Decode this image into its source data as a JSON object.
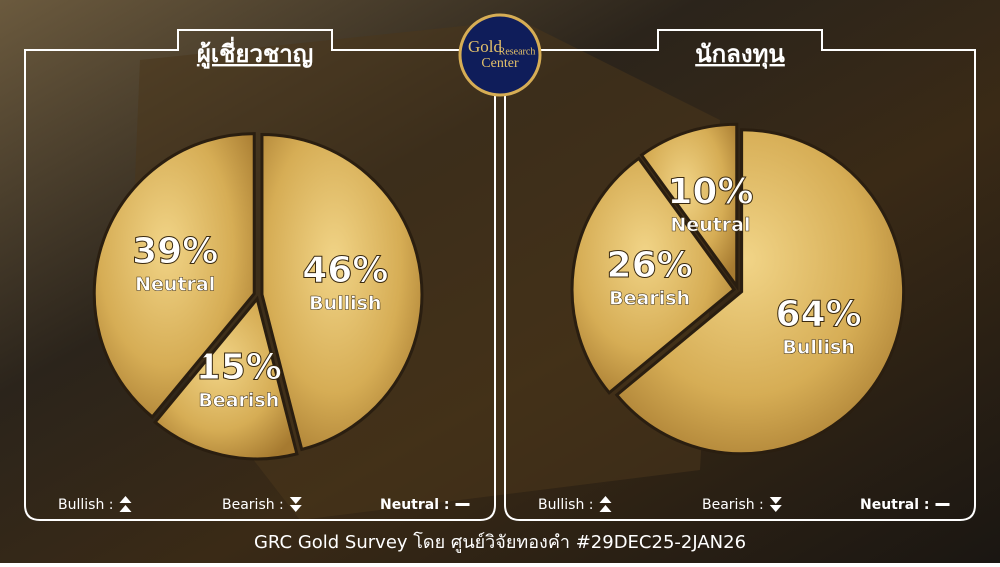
{
  "logo": [
    "Gold",
    "Research",
    "Center"
  ],
  "footer": "GRC Gold Survey โดย ศูนย์วิจัยทองคำ #29DEC25-2JAN26",
  "chart_data": [
    {
      "type": "pie",
      "title": "ผู้เชี่ยวชาญ",
      "categories": [
        "Bullish",
        "Bearish",
        "Neutral"
      ],
      "values": [
        46,
        15,
        39
      ],
      "value_labels": [
        "46%",
        "15%",
        "39%"
      ],
      "color": "#d6ad55",
      "legend": [
        "Bullish :",
        "Bearish :",
        "Neutral :"
      ]
    },
    {
      "type": "pie",
      "title": "นักลงทุน",
      "categories": [
        "Bullish",
        "Bearish",
        "Neutral"
      ],
      "values": [
        64,
        26,
        10
      ],
      "value_labels": [
        "64%",
        "26%",
        "10%"
      ],
      "color": "#d6ad55",
      "legend": [
        "Bullish :",
        "Bearish :",
        "Neutral :"
      ]
    }
  ]
}
